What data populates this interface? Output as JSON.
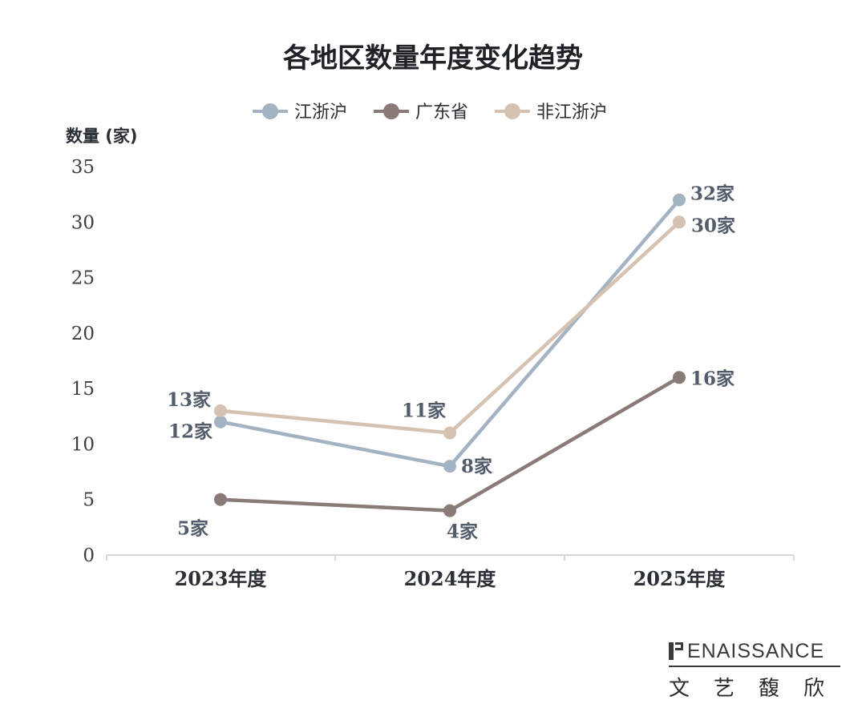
{
  "chart_data": {
    "type": "line",
    "title": "各地区数量年度变化趋势",
    "ylabel": "数量 (家)",
    "xlabel": "",
    "categories": [
      "2023年度",
      "2024年度",
      "2025年度"
    ],
    "ylim": [
      0,
      35
    ],
    "yticks": [
      "0",
      "5",
      "10",
      "15",
      "20",
      "25",
      "30",
      "35"
    ],
    "grid": false,
    "legend_position": "top-center",
    "series": [
      {
        "name": "江浙沪",
        "color": "#a4b3c2",
        "values": [
          12,
          8,
          32
        ],
        "labels": [
          "12家",
          "8家",
          "32家"
        ]
      },
      {
        "name": "广东省",
        "color": "#8a7b78",
        "values": [
          5,
          4,
          16
        ],
        "labels": [
          "5家",
          "4家",
          "16家"
        ]
      },
      {
        "name": "非江浙沪",
        "color": "#d6c2b1",
        "values": [
          13,
          11,
          30
        ],
        "labels": [
          "13家",
          "11家",
          "30家"
        ]
      }
    ]
  },
  "brand": {
    "english": "ENAISSANCE",
    "chinese": "文艺馥欣"
  }
}
